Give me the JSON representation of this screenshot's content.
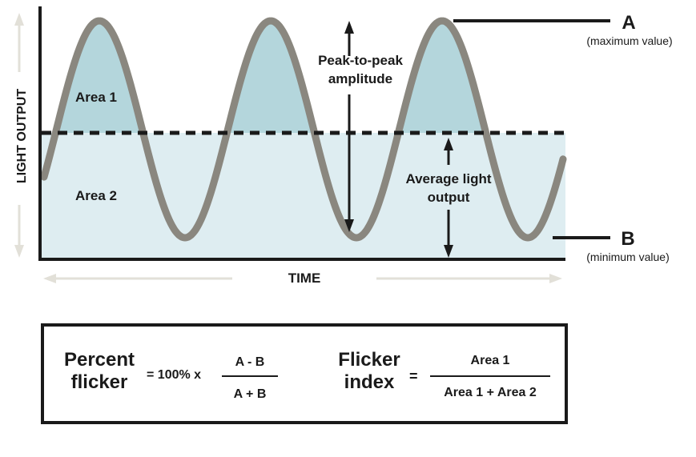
{
  "colors": {
    "wave": "#8a877f",
    "area1": "#b4d6dc",
    "area2": "#deedf1",
    "ink": "#1a1a1a",
    "arrow_light": "#e2e0d8"
  },
  "diagram": {
    "y_axis_label": "LIGHT OUTPUT",
    "x_axis_label": "TIME",
    "area1_label": "Area 1",
    "area2_label": "Area 2",
    "peak_label_line1": "Peak-to-peak",
    "peak_label_line2": "amplitude",
    "average_label_line1": "Average light",
    "average_label_line2": "output",
    "max_letter": "A",
    "max_caption": "(maximum value)",
    "min_letter": "B",
    "min_caption": "(minimum value)"
  },
  "formulas": {
    "percent_line1": "Percent",
    "percent_line2": "flicker",
    "percent_equals": "= 100% x",
    "percent_numerator": "A - B",
    "percent_denominator": "A + B",
    "index_line1": "Flicker",
    "index_line2": "index",
    "index_equals": "=",
    "index_numerator": "Area 1",
    "index_denominator": "Area 1 + Area 2"
  }
}
